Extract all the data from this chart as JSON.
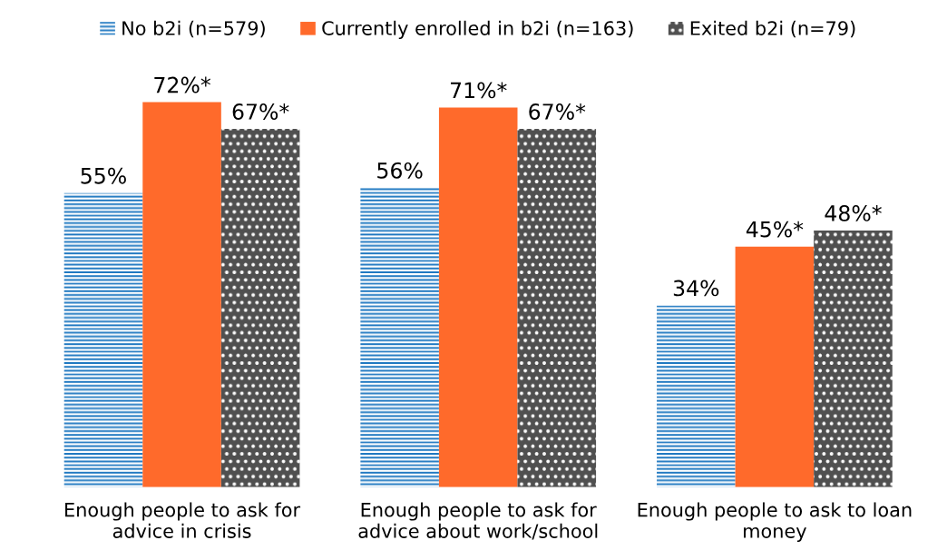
{
  "chart_data": {
    "type": "bar",
    "categories": [
      "Enough people to ask for\nadvice in crisis",
      "Enough people to ask for\nadvice about work/school",
      "Enough people to ask to loan\nmoney"
    ],
    "series": [
      {
        "name": "No b2i (n=579)",
        "color": "#1f78c1",
        "values": [
          55,
          56,
          34
        ],
        "value_labels": [
          "55%",
          "56%",
          "34%"
        ]
      },
      {
        "name": "Currently enrolled in b2i (n=163)",
        "color": "#ff6a2b",
        "values": [
          72,
          71,
          45
        ],
        "value_labels": [
          "72%*",
          "71%*",
          "45%*"
        ]
      },
      {
        "name": "Exited b2i (n=79)",
        "color": "#505050",
        "values": [
          67,
          67,
          48
        ],
        "value_labels": [
          "67%*",
          "67%*",
          "48%*"
        ]
      }
    ],
    "legend": "top",
    "grid": false
  }
}
